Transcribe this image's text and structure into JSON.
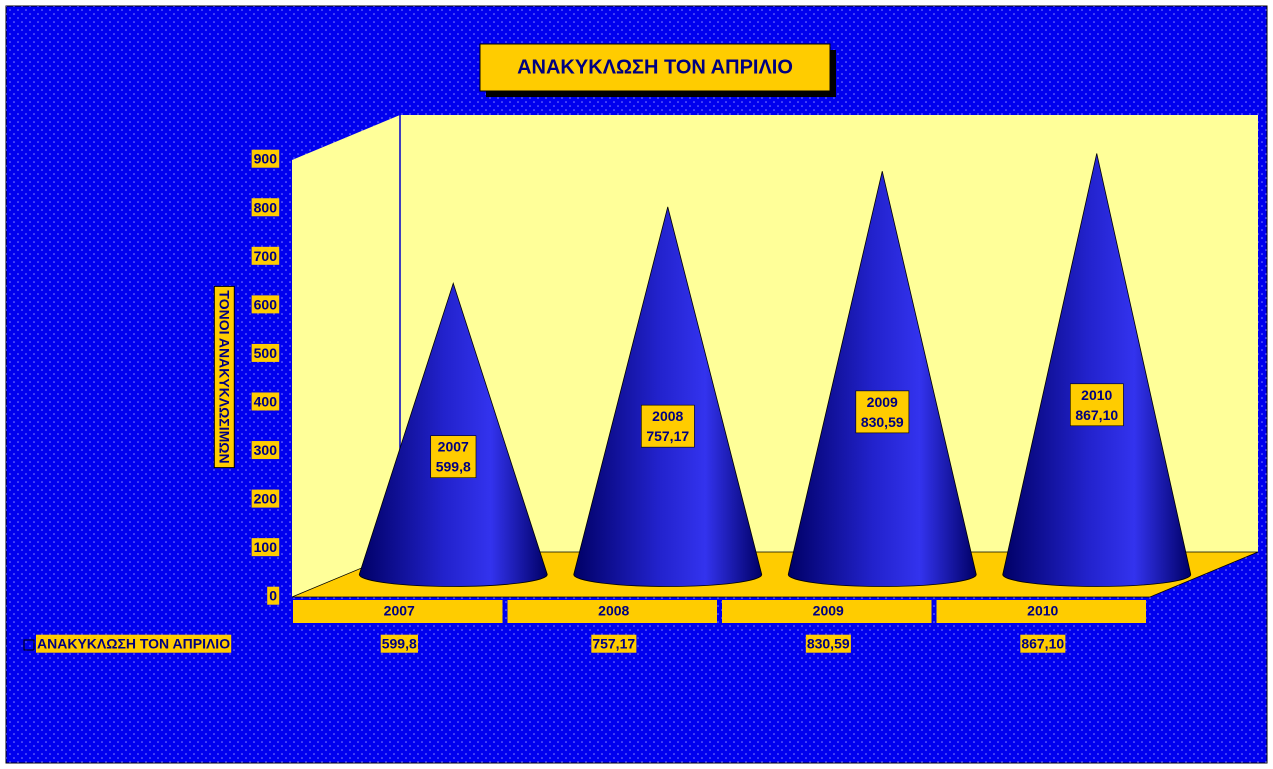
{
  "chart_data": {
    "type": "cone",
    "title": "ΑΝΑΚΥΚΛΩΣΗ ΤΟΝ ΑΠΡΙΛΙΟ",
    "y_label": "ΤΟΝΟΙ ΑΝΑΚΥΚΛΩΣΙΜΩΝ",
    "categories": [
      "2007",
      "2008",
      "2009",
      "2010"
    ],
    "series": [
      {
        "name": "ΑΝΑΚΥΚΛΩΣΗ ΤΟΝ ΑΠΡΙΛΙΟ",
        "color": "#2222cc",
        "values": [
          599.8,
          757.17,
          830.59,
          867.1
        ],
        "value_labels": [
          "599,8",
          "757,17",
          "830,59",
          "867,10"
        ]
      }
    ],
    "ylim": [
      0,
      900
    ],
    "yticks": [
      0,
      100,
      200,
      300,
      400,
      500,
      600,
      700,
      800,
      900
    ],
    "background_color": "#0000ee",
    "wall_color": "#ffff99",
    "floor_color": "#ffcc00",
    "data_table": true
  }
}
